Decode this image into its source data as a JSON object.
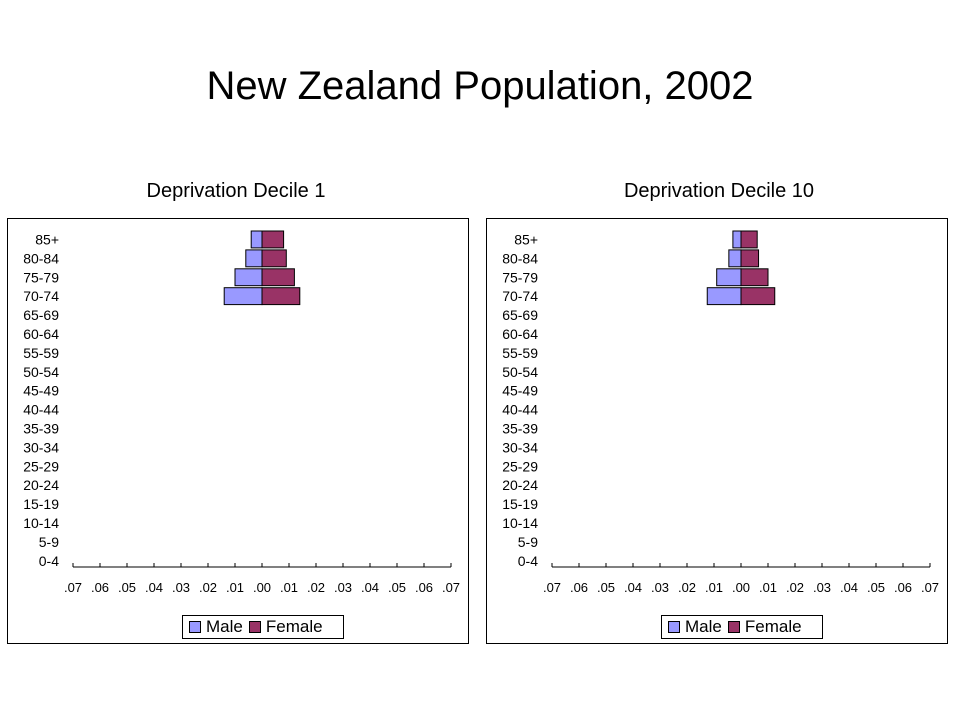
{
  "title": "New Zealand Population, 2002",
  "colors": {
    "male": "#9999ff",
    "female": "#993366",
    "axis": "#000000"
  },
  "chart_data": [
    {
      "type": "bar",
      "orientation": "horizontal-population-pyramid",
      "title": "Deprivation Decile 1",
      "categories": [
        "0-4",
        "5-9",
        "10-14",
        "15-19",
        "20-24",
        "25-29",
        "30-34",
        "35-39",
        "40-44",
        "45-49",
        "50-54",
        "55-59",
        "60-64",
        "65-69",
        "70-74",
        "75-79",
        "80-84",
        "85+"
      ],
      "xtick_labels": [
        ".07",
        ".06",
        ".05",
        ".04",
        ".03",
        ".02",
        ".01",
        ".00",
        ".01",
        ".02",
        ".03",
        ".04",
        ".05",
        ".06",
        ".07"
      ],
      "xlim": [
        -0.07,
        0.07
      ],
      "series": [
        {
          "name": "Male",
          "values": [
            0,
            0,
            0,
            0,
            0,
            0,
            0,
            0,
            0,
            0,
            0,
            0,
            0,
            0,
            -0.014,
            -0.01,
            -0.006,
            -0.004
          ]
        },
        {
          "name": "Female",
          "values": [
            0,
            0,
            0,
            0,
            0,
            0,
            0,
            0,
            0,
            0,
            0,
            0,
            0,
            0,
            0.014,
            0.012,
            0.009,
            0.008
          ]
        }
      ],
      "legend": "bottom",
      "grid": false
    },
    {
      "type": "bar",
      "orientation": "horizontal-population-pyramid",
      "title": "Deprivation Decile 10",
      "categories": [
        "0-4",
        "5-9",
        "10-14",
        "15-19",
        "20-24",
        "25-29",
        "30-34",
        "35-39",
        "40-44",
        "45-49",
        "50-54",
        "55-59",
        "60-64",
        "65-69",
        "70-74",
        "75-79",
        "80-84",
        "85+"
      ],
      "xtick_labels": [
        ".07",
        ".06",
        ".05",
        ".04",
        ".03",
        ".02",
        ".01",
        ".00",
        ".01",
        ".02",
        ".03",
        ".04",
        ".05",
        ".06",
        ".07"
      ],
      "xlim": [
        -0.07,
        0.07
      ],
      "series": [
        {
          "name": "Male",
          "values": [
            0,
            0,
            0,
            0,
            0,
            0,
            0,
            0,
            0,
            0,
            0,
            0,
            0,
            0,
            -0.0125,
            -0.009,
            -0.0045,
            -0.003
          ]
        },
        {
          "name": "Female",
          "values": [
            0,
            0,
            0,
            0,
            0,
            0,
            0,
            0,
            0,
            0,
            0,
            0,
            0,
            0,
            0.0125,
            0.01,
            0.0065,
            0.006
          ]
        }
      ],
      "legend": "bottom",
      "grid": false
    }
  ]
}
